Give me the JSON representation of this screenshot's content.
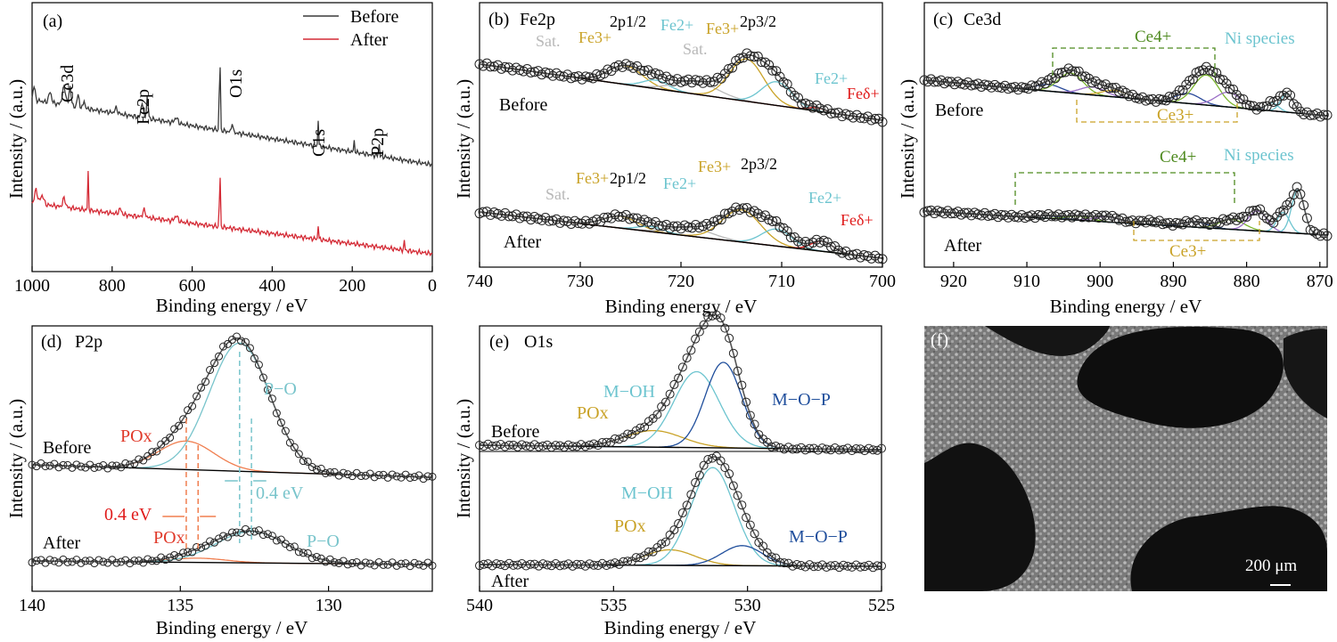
{
  "colors": {
    "before": "#3a3a3a",
    "after": "#d42a35",
    "fe3": "#c9a227",
    "fe2": "#6cc4cf",
    "fed": "#e01b1b",
    "sat": "#b8b8b8",
    "ce4": "#4e8a1f",
    "ce3": "#c9a227",
    "ni": "#6cc4cf",
    "px": "#f07e4f",
    "po": "#78c4cb",
    "mop": "#1f4e9c",
    "o_px": "#c9a227",
    "moh": "#6cc4cf",
    "purple": "#9b6fc7",
    "navy": "#2b4a9b",
    "lime": "#7ab52d"
  },
  "panels": {
    "a": {
      "tag": "(a)",
      "xlabel": "Binding energy / eV",
      "ylabel": "Intensity / (a.u.)",
      "xticks": [
        "1000",
        "800",
        "600",
        "400",
        "200",
        "0"
      ],
      "legend": [
        "Before",
        "After"
      ],
      "peaks": [
        "Ce3d",
        "Fe2p",
        "O1s",
        "C1s",
        "P2p"
      ]
    },
    "b": {
      "tag": "(b)",
      "title": "Fe2p",
      "xlabel": "Binding energy / eV",
      "ylabel": "Intensity / (a.u.)",
      "xticks": [
        "740",
        "730",
        "720",
        "710",
        "700"
      ],
      "rows": [
        "Before",
        "After"
      ],
      "labels": {
        "sat": "Sat.",
        "fe3": "Fe3+",
        "fe2": "Fe2+",
        "fed": "Feδ+",
        "p12": "2p1/2",
        "p32": "2p3/2"
      }
    },
    "c": {
      "tag": "(c)",
      "title": "Ce3d",
      "xlabel": "Binding energy / eV",
      "ylabel": "Intensity / (a.u.)",
      "xticks": [
        "920",
        "910",
        "900",
        "890",
        "880",
        "870"
      ],
      "rows": [
        "Before",
        "After"
      ],
      "labels": {
        "ce4": "Ce4+",
        "ce3": "Ce3+",
        "ni": "Ni species"
      }
    },
    "d": {
      "tag": "(d)",
      "title": "P2p",
      "xlabel": "Binding energy / eV",
      "ylabel": "Intensity / (a.u.)",
      "xticks": [
        "140",
        "135",
        "130"
      ],
      "rows": [
        "Before",
        "After"
      ],
      "labels": {
        "pox": "POx",
        "po": "P−O",
        "shift_left": "0.4 eV",
        "shift_right": "0.4 eV"
      }
    },
    "e": {
      "tag": "(e)",
      "title": "O1s",
      "xlabel": "Binding energy / eV",
      "ylabel": "Intensity / (a.u.)",
      "xticks": [
        "540",
        "535",
        "530",
        "525"
      ],
      "rows": [
        "Before",
        "After"
      ],
      "labels": {
        "pox": "POx",
        "moh": "M−OH",
        "mop": "M−O−P"
      }
    },
    "f": {
      "tag": "(f)",
      "scale": "200 μm"
    }
  },
  "chart_data": [
    {
      "panel": "a",
      "type": "line",
      "xlabel": "Binding energy / eV",
      "ylabel": "Intensity / (a.u.)",
      "xlim": [
        1000,
        0
      ],
      "reversed_x": true,
      "series": [
        {
          "name": "Before",
          "color": "#3a3a3a",
          "peaks": [
            [
              900,
              "Ce3d"
            ],
            [
              712,
              "Fe2p"
            ],
            [
              531,
              "O1s"
            ],
            [
              285,
              "C1s"
            ],
            [
              133,
              "P2p"
            ]
          ]
        },
        {
          "name": "After",
          "color": "#d42a35",
          "peaks": [
            [
              860,
              ""
            ],
            [
              531,
              "O1s"
            ],
            [
              285,
              "C1s"
            ]
          ]
        }
      ]
    },
    {
      "panel": "b",
      "type": "line",
      "xlim": [
        740,
        700
      ],
      "reversed_x": true,
      "components_before": [
        {
          "name": "Fe3+",
          "center": 725.5,
          "fwhm": 4.0,
          "height": 0.22
        },
        {
          "name": "Fe2+",
          "center": 722.5,
          "fwhm": 3.0,
          "height": 0.1
        },
        {
          "name": "Sat.",
          "center": 718.5,
          "fwhm": 5.0,
          "height": 0.15
        },
        {
          "name": "Fe3+",
          "center": 713.5,
          "fwhm": 4.0,
          "height": 0.5
        },
        {
          "name": "Fe2+",
          "center": 710.5,
          "fwhm": 3.5,
          "height": 0.28
        },
        {
          "name": "Feδ+",
          "center": 706.5,
          "fwhm": 2.0,
          "height": 0.04
        }
      ],
      "components_after": [
        {
          "name": "Fe3+",
          "center": 726.0,
          "fwhm": 4.0,
          "height": 0.14
        },
        {
          "name": "Fe2+",
          "center": 723.0,
          "fwhm": 3.0,
          "height": 0.06
        },
        {
          "name": "Sat.",
          "center": 719.0,
          "fwhm": 5.0,
          "height": 0.1
        },
        {
          "name": "Fe3+",
          "center": 714.0,
          "fwhm": 4.5,
          "height": 0.38
        },
        {
          "name": "Fe2+",
          "center": 710.5,
          "fwhm": 3.5,
          "height": 0.2
        },
        {
          "name": "Feδ+",
          "center": 706.0,
          "fwhm": 2.5,
          "height": 0.12
        }
      ]
    },
    {
      "panel": "c",
      "type": "line",
      "xlim": [
        924,
        869
      ],
      "reversed_x": true,
      "components_before": [
        {
          "center": 907,
          "fwhm": 4,
          "height": 0.1
        },
        {
          "center": 904,
          "fwhm": 4,
          "height": 0.3
        },
        {
          "center": 901,
          "fwhm": 4,
          "height": 0.12
        },
        {
          "center": 898,
          "fwhm": 4,
          "height": 0.1
        },
        {
          "center": 888,
          "fwhm": 4,
          "height": 0.15
        },
        {
          "center": 885.5,
          "fwhm": 4,
          "height": 0.45
        },
        {
          "center": 882.5,
          "fwhm": 4,
          "height": 0.22
        },
        {
          "center": 876.5,
          "fwhm": 2,
          "height": 0.12
        },
        {
          "center": 874.5,
          "fwhm": 2,
          "height": 0.28
        }
      ],
      "components_after": [
        {
          "center": 907,
          "fwhm": 4,
          "height": 0.04
        },
        {
          "center": 903,
          "fwhm": 4,
          "height": 0.06
        },
        {
          "center": 899,
          "fwhm": 4,
          "height": 0.08
        },
        {
          "center": 893,
          "fwhm": 4,
          "height": 0.05
        },
        {
          "center": 887,
          "fwhm": 4,
          "height": 0.08
        },
        {
          "center": 882,
          "fwhm": 4,
          "height": 0.15
        },
        {
          "center": 878.5,
          "fwhm": 3,
          "height": 0.3
        },
        {
          "center": 875,
          "fwhm": 2,
          "height": 0.3
        },
        {
          "center": 873,
          "fwhm": 2,
          "height": 0.65
        }
      ]
    },
    {
      "panel": "d",
      "type": "line",
      "xlim": [
        140,
        126.5
      ],
      "reversed_x": true,
      "components_before": [
        {
          "name": "POx",
          "center": 134.8,
          "fwhm": 2.2,
          "height": 0.2
        },
        {
          "name": "P−O",
          "center": 133.0,
          "fwhm": 2.4,
          "height": 0.9
        }
      ],
      "components_after": [
        {
          "name": "POx",
          "center": 134.4,
          "fwhm": 2.2,
          "height": 0.03
        },
        {
          "name": "P−O",
          "center": 132.6,
          "fwhm": 2.8,
          "height": 0.22
        }
      ],
      "shift_eV": 0.4
    },
    {
      "panel": "e",
      "type": "line",
      "xlim": [
        540,
        525
      ],
      "reversed_x": true,
      "components_before": [
        {
          "name": "POx",
          "center": 533.5,
          "fwhm": 2.5,
          "height": 0.12
        },
        {
          "name": "M−OH",
          "center": 531.9,
          "fwhm": 2.0,
          "height": 0.55
        },
        {
          "name": "M−O−P",
          "center": 530.9,
          "fwhm": 1.6,
          "height": 0.62
        }
      ],
      "components_after": [
        {
          "name": "POx",
          "center": 532.9,
          "fwhm": 2.2,
          "height": 0.14
        },
        {
          "name": "M−OH",
          "center": 531.3,
          "fwhm": 1.9,
          "height": 0.88
        },
        {
          "name": "M−O−P",
          "center": 530.2,
          "fwhm": 1.8,
          "height": 0.18
        }
      ]
    }
  ]
}
